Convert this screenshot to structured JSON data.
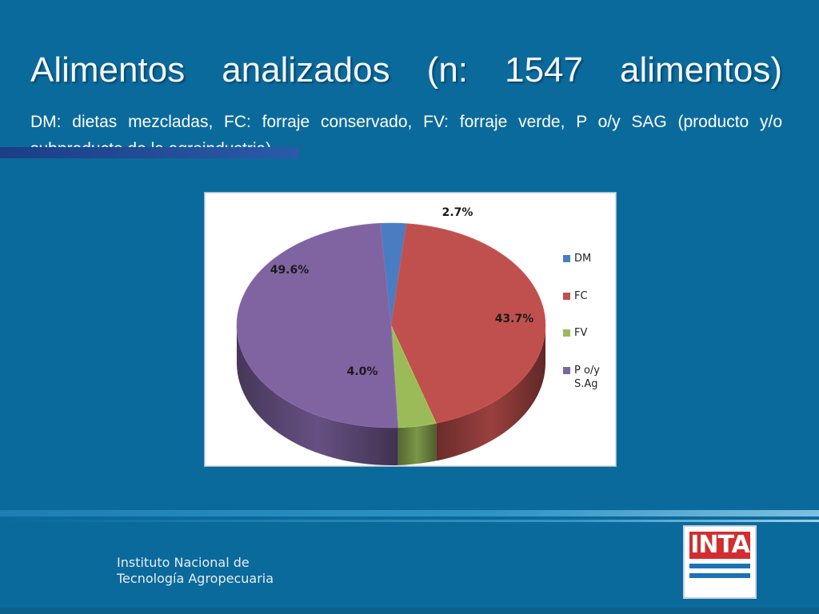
{
  "slide": {
    "title": "Alimentos analizados (n: 1547 alimentos)",
    "subtitle": "DM: dietas mezcladas, FC: forraje conservado, FV: forraje verde, P o/y SAG (producto y/o subproducto de la agroindustria)",
    "footer_line1": "Instituto Nacional de",
    "footer_line2": "Tecnología Agropecuaria",
    "logo_text": "INTA"
  },
  "chart_data": {
    "type": "pie",
    "style": "3d",
    "legend_position": "right",
    "series": [
      {
        "name": "DM",
        "value": 2.7,
        "label": "2.7%",
        "color": "#4a7cc2"
      },
      {
        "name": "FC",
        "value": 43.7,
        "label": "43.7%",
        "color": "#c0504d"
      },
      {
        "name": "FV",
        "value": 4.0,
        "label": "4.0%",
        "color": "#9bbb59"
      },
      {
        "name": "P o/y S.Ag",
        "value": 49.6,
        "label": "49.6%",
        "color": "#8064a2"
      }
    ]
  }
}
